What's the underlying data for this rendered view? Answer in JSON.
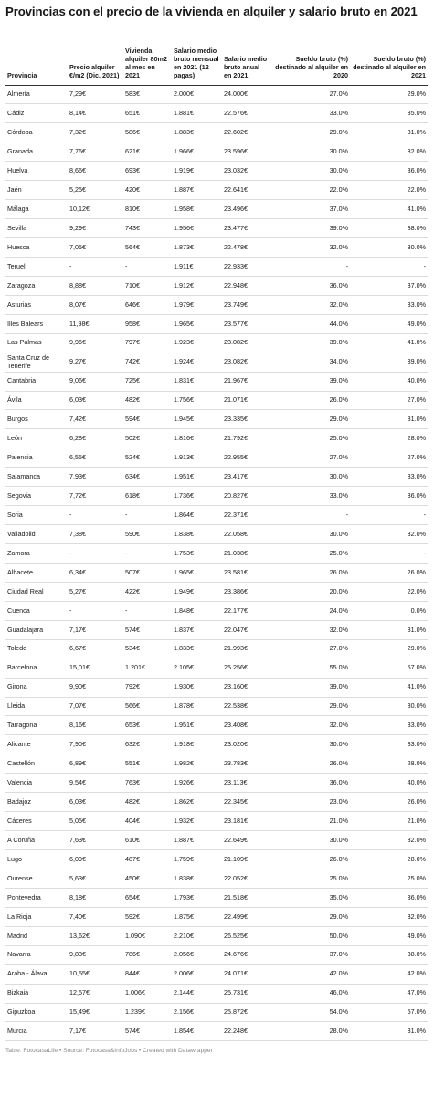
{
  "title": "Provincias con el precio de la vivienda en alquiler y salario bruto en 2021",
  "columns": [
    "Provincia",
    "Precio alquiler €/m2 (Dic. 2021)",
    "Vivienda alquiler 80m2 al mes en 2021",
    "Salario medio bruto mensual en 2021 (12 pagas)",
    "Salario medio bruto anual en 2021",
    "Sueldo bruto (%) destinado al alquiler en 2020",
    "Sueldo bruto (%) destinado al alquiler en 2021"
  ],
  "rows": [
    [
      "Almería",
      "7,29€",
      "583€",
      "2.000€",
      "24.000€",
      "27.0%",
      "29.0%"
    ],
    [
      "Cádiz",
      "8,14€",
      "651€",
      "1.881€",
      "22.576€",
      "33.0%",
      "35.0%"
    ],
    [
      "Córdoba",
      "7,32€",
      "586€",
      "1.883€",
      "22.602€",
      "29.0%",
      "31.0%"
    ],
    [
      "Granada",
      "7,76€",
      "621€",
      "1.966€",
      "23.596€",
      "30.0%",
      "32.0%"
    ],
    [
      "Huelva",
      "8,66€",
      "693€",
      "1.919€",
      "23.032€",
      "30.0%",
      "36.0%"
    ],
    [
      "Jaén",
      "5,25€",
      "420€",
      "1.887€",
      "22.641€",
      "22.0%",
      "22.0%"
    ],
    [
      "Málaga",
      "10,12€",
      "810€",
      "1.958€",
      "23.496€",
      "37.0%",
      "41.0%"
    ],
    [
      "Sevilla",
      "9,29€",
      "743€",
      "1.956€",
      "23.477€",
      "39.0%",
      "38.0%"
    ],
    [
      "Huesca",
      "7,05€",
      "564€",
      "1.873€",
      "22.478€",
      "32.0%",
      "30.0%"
    ],
    [
      "Teruel",
      "-",
      "-",
      "1.911€",
      "22.933€",
      "-",
      "-"
    ],
    [
      "Zaragoza",
      "8,88€",
      "710€",
      "1.912€",
      "22.948€",
      "36.0%",
      "37.0%"
    ],
    [
      "Asturias",
      "8,07€",
      "646€",
      "1.979€",
      "23.749€",
      "32.0%",
      "33.0%"
    ],
    [
      "Illes Balears",
      "11,98€",
      "958€",
      "1.965€",
      "23.577€",
      "44.0%",
      "49.0%"
    ],
    [
      "Las Palmas",
      "9,96€",
      "797€",
      "1.923€",
      "23.082€",
      "39.0%",
      "41.0%"
    ],
    [
      "Santa Cruz de Tenerife",
      "9,27€",
      "742€",
      "1.924€",
      "23.082€",
      "34.0%",
      "39.0%"
    ],
    [
      "Cantabria",
      "9,06€",
      "725€",
      "1.831€",
      "21.967€",
      "39.0%",
      "40.0%"
    ],
    [
      "Ávila",
      "6,03€",
      "482€",
      "1.756€",
      "21.071€",
      "26.0%",
      "27.0%"
    ],
    [
      "Burgos",
      "7,42€",
      "594€",
      "1.945€",
      "23.335€",
      "29.0%",
      "31.0%"
    ],
    [
      "León",
      "6,28€",
      "502€",
      "1.816€",
      "21.792€",
      "25.0%",
      "28.0%"
    ],
    [
      "Palencia",
      "6,55€",
      "524€",
      "1.913€",
      "22.955€",
      "27.0%",
      "27.0%"
    ],
    [
      "Salamanca",
      "7,93€",
      "634€",
      "1.951€",
      "23.417€",
      "30.0%",
      "33.0%"
    ],
    [
      "Segovia",
      "7,72€",
      "618€",
      "1.736€",
      "20.827€",
      "33.0%",
      "36.0%"
    ],
    [
      "Soria",
      "-",
      "-",
      "1.864€",
      "22.371€",
      "-",
      "-"
    ],
    [
      "Valladolid",
      "7,38€",
      "590€",
      "1.838€",
      "22.058€",
      "30.0%",
      "32.0%"
    ],
    [
      "Zamora",
      "-",
      "-",
      "1.753€",
      "21.038€",
      "25.0%",
      "-"
    ],
    [
      "Albacete",
      "6,34€",
      "507€",
      "1.965€",
      "23.581€",
      "26.0%",
      "26.0%"
    ],
    [
      "Ciudad Real",
      "5,27€",
      "422€",
      "1.949€",
      "23.386€",
      "20.0%",
      "22.0%"
    ],
    [
      "Cuenca",
      "-",
      "-",
      "1.848€",
      "22.177€",
      "24.0%",
      "0.0%"
    ],
    [
      "Guadalajara",
      "7,17€",
      "574€",
      "1.837€",
      "22.047€",
      "32.0%",
      "31.0%"
    ],
    [
      "Toledo",
      "6,67€",
      "534€",
      "1.833€",
      "21.993€",
      "27.0%",
      "29.0%"
    ],
    [
      "Barcelona",
      "15,01€",
      "1.201€",
      "2.105€",
      "25.256€",
      "55.0%",
      "57.0%"
    ],
    [
      "Girona",
      "9,90€",
      "792€",
      "1.930€",
      "23.160€",
      "39.0%",
      "41.0%"
    ],
    [
      "Lleida",
      "7,07€",
      "566€",
      "1.878€",
      "22.538€",
      "29.0%",
      "30.0%"
    ],
    [
      "Tarragona",
      "8,16€",
      "653€",
      "1.951€",
      "23.408€",
      "32.0%",
      "33.0%"
    ],
    [
      "Alicante",
      "7,90€",
      "632€",
      "1.918€",
      "23.020€",
      "30.0%",
      "33.0%"
    ],
    [
      "Castellón",
      "6,89€",
      "551€",
      "1.982€",
      "23.783€",
      "26.0%",
      "28.0%"
    ],
    [
      "Valencia",
      "9,54€",
      "763€",
      "1.926€",
      "23.113€",
      "36.0%",
      "40.0%"
    ],
    [
      "Badajoz",
      "6,03€",
      "482€",
      "1.862€",
      "22.345€",
      "23.0%",
      "26.0%"
    ],
    [
      "Cáceres",
      "5,05€",
      "404€",
      "1.932€",
      "23.181€",
      "21.0%",
      "21.0%"
    ],
    [
      "A Coruña",
      "7,63€",
      "610€",
      "1.887€",
      "22.649€",
      "30.0%",
      "32.0%"
    ],
    [
      "Lugo",
      "6,09€",
      "487€",
      "1.759€",
      "21.109€",
      "26.0%",
      "28.0%"
    ],
    [
      "Ourense",
      "5,63€",
      "450€",
      "1.838€",
      "22.052€",
      "25.0%",
      "25.0%"
    ],
    [
      "Pontevedra",
      "8,18€",
      "654€",
      "1.793€",
      "21.518€",
      "35.0%",
      "36.0%"
    ],
    [
      "La Rioja",
      "7,40€",
      "592€",
      "1.875€",
      "22.499€",
      "29.0%",
      "32.0%"
    ],
    [
      "Madrid",
      "13,62€",
      "1.090€",
      "2.210€",
      "26.525€",
      "50.0%",
      "49.0%"
    ],
    [
      "Navarra",
      "9,83€",
      "786€",
      "2.056€",
      "24.676€",
      "37.0%",
      "38.0%"
    ],
    [
      "Araba - Álava",
      "10,55€",
      "844€",
      "2.006€",
      "24.071€",
      "42.0%",
      "42.0%"
    ],
    [
      "Bizkaia",
      "12,57€",
      "1.006€",
      "2.144€",
      "25.731€",
      "46.0%",
      "47.0%"
    ],
    [
      "Gipuzkoa",
      "15,49€",
      "1.239€",
      "2.156€",
      "25.872€",
      "54.0%",
      "57.0%"
    ],
    [
      "Murcia",
      "7,17€",
      "574€",
      "1.854€",
      "22.248€",
      "28.0%",
      "31.0%"
    ]
  ],
  "footer": {
    "table_label": "Table: FotocasaLife",
    "source": "Source: Fotocasa&InfoJobs",
    "created": "Created with Datawrapper",
    "separator": " • "
  }
}
